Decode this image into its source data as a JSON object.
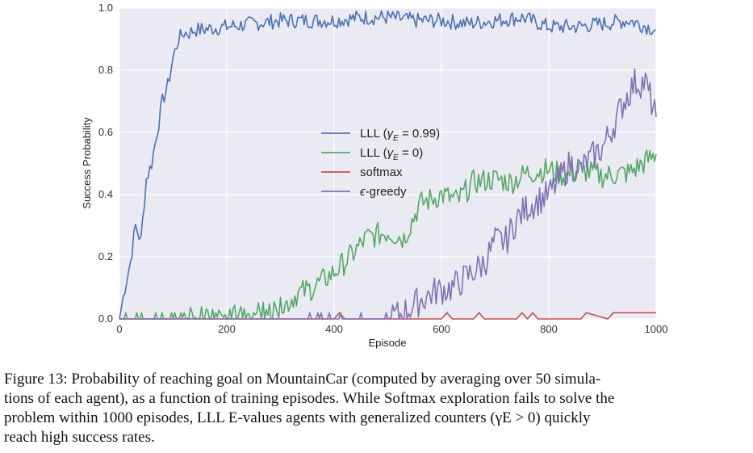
{
  "chart_data": {
    "type": "line",
    "xlabel": "Episode",
    "ylabel": "Success Probability",
    "xlim": [
      0,
      1000
    ],
    "ylim": [
      0,
      1.0
    ],
    "xticks": [
      "0",
      "200",
      "400",
      "600",
      "800",
      "1000"
    ],
    "yticks": [
      "0.0",
      "0.2",
      "0.4",
      "0.6",
      "0.8",
      "1.0"
    ],
    "grid": true,
    "background": "#eaeaf2",
    "legend_position": "center",
    "series": [
      {
        "name": "LLL (γE = 0.99)",
        "legend_main": "LLL (",
        "legend_symbol": "γ",
        "legend_sub": "E",
        "legend_rest": " = 0.99)",
        "color": "#4c72b0",
        "x": [
          0,
          10,
          20,
          30,
          40,
          50,
          60,
          70,
          80,
          90,
          100,
          110,
          120,
          130,
          140,
          150,
          200,
          250,
          300,
          350,
          400,
          450,
          500,
          550,
          600,
          650,
          700,
          750,
          800,
          850,
          900,
          950,
          1000
        ],
        "y": [
          0.0,
          0.1,
          0.18,
          0.3,
          0.25,
          0.45,
          0.5,
          0.6,
          0.7,
          0.75,
          0.84,
          0.9,
          0.92,
          0.92,
          0.93,
          0.93,
          0.94,
          0.95,
          0.96,
          0.96,
          0.96,
          0.97,
          0.97,
          0.96,
          0.96,
          0.95,
          0.96,
          0.97,
          0.94,
          0.94,
          0.95,
          0.96,
          0.93
        ]
      },
      {
        "name": "LLL (γE = 0)",
        "legend_main": "LLL (",
        "legend_symbol": "γ",
        "legend_sub": "E",
        "legend_rest": " = 0)",
        "color": "#55a868",
        "x": [
          0,
          50,
          100,
          150,
          200,
          250,
          300,
          330,
          360,
          400,
          430,
          460,
          500,
          530,
          560,
          600,
          630,
          660,
          700,
          730,
          760,
          800,
          830,
          860,
          900,
          950,
          1000
        ],
        "y": [
          0.0,
          0.0,
          0.0,
          0.01,
          0.01,
          0.01,
          0.03,
          0.08,
          0.1,
          0.15,
          0.2,
          0.26,
          0.28,
          0.26,
          0.37,
          0.4,
          0.38,
          0.44,
          0.45,
          0.44,
          0.47,
          0.48,
          0.46,
          0.48,
          0.46,
          0.47,
          0.53
        ]
      },
      {
        "name": "softmax",
        "legend_main": "softmax",
        "color": "#c44e52",
        "x": [
          0,
          100,
          200,
          300,
          400,
          410,
          420,
          430,
          500,
          600,
          610,
          620,
          660,
          670,
          680,
          740,
          750,
          760,
          770,
          780,
          800,
          860,
          870,
          910,
          920,
          1000
        ],
        "y": [
          0.0,
          0.0,
          0.0,
          0.0,
          0.0,
          0.02,
          0.0,
          0.0,
          0.0,
          0.0,
          0.02,
          0.0,
          0.0,
          0.02,
          0.0,
          0.0,
          0.02,
          0.0,
          0.02,
          0.0,
          0.0,
          0.0,
          0.02,
          0.0,
          0.02,
          0.02
        ]
      },
      {
        "name": "ε-greedy",
        "legend_main": "-greedy",
        "legend_symbol": "ϵ",
        "color": "#8172b2",
        "x": [
          0,
          100,
          200,
          300,
          400,
          450,
          500,
          530,
          560,
          590,
          620,
          650,
          680,
          700,
          720,
          740,
          760,
          780,
          800,
          820,
          840,
          860,
          880,
          900,
          920,
          940,
          960,
          980,
          1000
        ],
        "y": [
          0.0,
          0.0,
          0.0,
          0.0,
          0.0,
          0.0,
          0.0,
          0.02,
          0.06,
          0.09,
          0.1,
          0.14,
          0.18,
          0.25,
          0.25,
          0.32,
          0.36,
          0.38,
          0.4,
          0.45,
          0.5,
          0.48,
          0.52,
          0.55,
          0.62,
          0.7,
          0.76,
          0.76,
          0.65
        ]
      }
    ]
  },
  "caption": {
    "line1": "Figure 13: Probability of reaching goal on MountainCar (computed by averaging over 50 simula-",
    "line2": "tions of each agent), as a function of training episodes. While Softmax exploration fails to solve the",
    "line3": "problem within 1000 episodes, LLL E-values agents with generalized counters (γE > 0) quickly",
    "line4": "reach high success rates."
  }
}
